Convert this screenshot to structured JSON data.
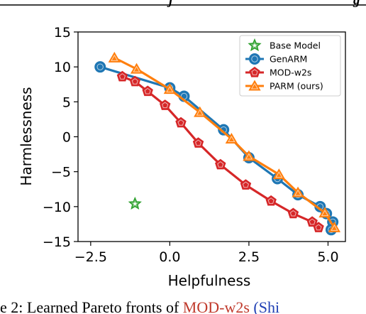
{
  "header": {
    "fragment": "j",
    "fragment_right": "g"
  },
  "caption": {
    "prefix": "e 2: Learned Pareto fronts of ",
    "link1": "MOD-w2s",
    "link2": "(Shi"
  },
  "colors": {
    "base": "#2ca02c",
    "genarm": "#1f77b4",
    "modw2s": "#d62728",
    "parm": "#ff7f0e",
    "link": "#c0392b",
    "link2": "#1f3fb4"
  },
  "chart_data": {
    "type": "line",
    "xlabel": "Helpfulness",
    "ylabel": "Harmlessness",
    "xlim": [
      -2.9,
      5.55
    ],
    "ylim": [
      -15,
      15
    ],
    "xticks": [
      -2.5,
      0.0,
      2.5,
      5.0
    ],
    "xtick_labels": [
      "−2.5",
      "0.0",
      "2.5",
      "5.0"
    ],
    "yticks": [
      -15,
      -10,
      -5,
      0,
      5,
      10,
      15
    ],
    "ytick_labels": [
      "−15",
      "−10",
      "−5",
      "0",
      "5",
      "10",
      "15"
    ],
    "grid": false,
    "legend_position": "upper right",
    "series": [
      {
        "name": "Base Model",
        "marker": "star",
        "line": false,
        "color_key": "base",
        "points": [
          [
            -1.1,
            -9.6
          ]
        ]
      },
      {
        "name": "GenARM",
        "marker": "circle",
        "line": true,
        "color_key": "genarm",
        "points": [
          [
            -2.2,
            10.0
          ],
          [
            0.0,
            7.0
          ],
          [
            0.45,
            5.8
          ],
          [
            1.7,
            1.0
          ],
          [
            2.5,
            -3.0
          ],
          [
            3.4,
            -6.0
          ],
          [
            4.05,
            -8.3
          ],
          [
            4.75,
            -10.0
          ],
          [
            4.95,
            -11.0
          ],
          [
            5.15,
            -12.2
          ],
          [
            5.1,
            -13.3
          ]
        ]
      },
      {
        "name": "MOD-w2s",
        "marker": "pentagon",
        "line": true,
        "color_key": "modw2s",
        "points": [
          [
            -1.5,
            8.6
          ],
          [
            -1.1,
            7.9
          ],
          [
            -0.7,
            6.5
          ],
          [
            -0.15,
            4.5
          ],
          [
            0.35,
            2.0
          ],
          [
            0.9,
            -0.9
          ],
          [
            1.6,
            -4.0
          ],
          [
            2.4,
            -6.9
          ],
          [
            3.2,
            -9.2
          ],
          [
            3.9,
            -11.0
          ],
          [
            4.5,
            -12.2
          ],
          [
            4.7,
            -13.0
          ]
        ]
      },
      {
        "name": "PARM (ours)",
        "marker": "triangle",
        "line": true,
        "color_key": "parm",
        "points": [
          [
            -1.75,
            11.3
          ],
          [
            -1.05,
            9.7
          ],
          [
            0.0,
            6.8
          ],
          [
            0.95,
            3.5
          ],
          [
            1.95,
            -0.3
          ],
          [
            2.5,
            -2.8
          ],
          [
            3.45,
            -5.4
          ],
          [
            4.05,
            -8.0
          ],
          [
            4.9,
            -10.9
          ],
          [
            5.2,
            -13.0
          ]
        ]
      }
    ]
  }
}
